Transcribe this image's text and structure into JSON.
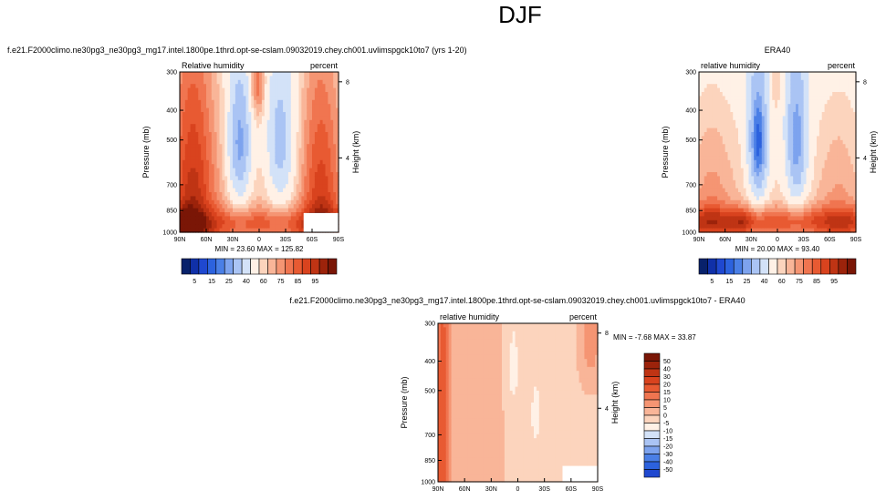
{
  "figure": {
    "main_title": "DJF"
  },
  "colors": {
    "rh_levels": [
      "#08216b",
      "#1030a8",
      "#1f48d0",
      "#2c62de",
      "#4a7fe6",
      "#7da3ee",
      "#aac4f4",
      "#d3e2f8",
      "#fff1e6",
      "#fcd4bd",
      "#f9b598",
      "#f59573",
      "#f07550",
      "#e85a32",
      "#d9431e",
      "#bf3414",
      "#9c230b",
      "#7a1606"
    ],
    "diff_levels": [
      "#08216b",
      "#1030a8",
      "#1f48d0",
      "#2c62de",
      "#4a7fe6",
      "#7da3ee",
      "#aac4f4",
      "#d3e2f8",
      "#fff1e6",
      "#fcd4bd",
      "#f9b598",
      "#f59573",
      "#f07550",
      "#e85a32",
      "#d9431e",
      "#bf3414",
      "#9c230b",
      "#7a1606"
    ]
  },
  "chart_data": [
    {
      "id": "model",
      "type": "heatmap",
      "title": "f.e21.F2000climo.ne30pg3_ne30pg3_mg17.intel.1800pe.1thrd.opt-se-cslam.09032019.chey.ch001.uvlimspgck10to7 (yrs 1-20)",
      "left_label": "Relative humidity",
      "right_label": "percent",
      "ylabel": "Pressure (mb)",
      "ylabel_right": "Height (km)",
      "x_ticks": [
        "90N",
        "60N",
        "30N",
        "0",
        "30S",
        "60S",
        "90S"
      ],
      "y_ticks": [
        "300",
        "400",
        "500",
        "700",
        "850",
        "1000"
      ],
      "height_ticks": [
        "8",
        "4"
      ],
      "xlim": [
        90,
        -90
      ],
      "ylim": [
        1000,
        300
      ],
      "stats": "MIN = 23.60   MAX = 125.82",
      "colorbar_labels": [
        "5",
        "15",
        "25",
        "40",
        "60",
        "75",
        "85",
        "95"
      ]
    },
    {
      "id": "era40",
      "type": "heatmap",
      "title": "ERA40",
      "left_label": "relative humidity",
      "right_label": "percent",
      "ylabel": "Pressure (mb)",
      "ylabel_right": "Height (km)",
      "x_ticks": [
        "90N",
        "60N",
        "30N",
        "0",
        "30S",
        "60S",
        "90S"
      ],
      "y_ticks": [
        "300",
        "400",
        "500",
        "700",
        "850",
        "1000"
      ],
      "height_ticks": [
        "8",
        "4"
      ],
      "xlim": [
        90,
        -90
      ],
      "ylim": [
        1000,
        300
      ],
      "stats": "MIN = 20.00   MAX = 93.40",
      "colorbar_labels": [
        "5",
        "15",
        "25",
        "40",
        "60",
        "75",
        "85",
        "95"
      ]
    },
    {
      "id": "diff",
      "type": "heatmap",
      "title": "f.e21.F2000climo.ne30pg3_ne30pg3_mg17.intel.1800pe.1thrd.opt-se-cslam.09032019.chey.ch001.uvlimspgck10to7 - ERA40",
      "left_label": "relative humidity",
      "right_label": "percent",
      "ylabel": "Pressure (mb)",
      "ylabel_right": "Height (km)",
      "x_ticks": [
        "90N",
        "60N",
        "30N",
        "0",
        "30S",
        "60S",
        "90S"
      ],
      "y_ticks": [
        "300",
        "400",
        "500",
        "700",
        "850",
        "1000"
      ],
      "height_ticks": [
        "8",
        "4"
      ],
      "xlim": [
        90,
        -90
      ],
      "ylim": [
        1000,
        300
      ],
      "stats": "MIN =  -7.68   MAX =  33.87",
      "colorbar_labels": [
        "50",
        "40",
        "30",
        "20",
        "15",
        "10",
        "5",
        "0",
        "-5",
        "-10",
        "-15",
        "-20",
        "-30",
        "-40",
        "-50"
      ]
    }
  ]
}
